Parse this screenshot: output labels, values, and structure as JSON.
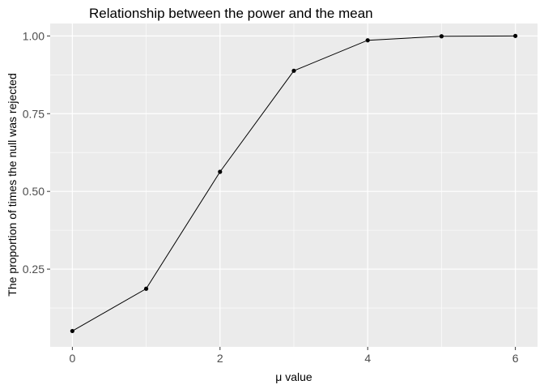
{
  "chart_data": {
    "type": "line",
    "title": "Relationship between the power and the mean",
    "xlabel": "μ value",
    "ylabel": "The proportion of times the null was rejected",
    "xlim": [
      -0.3,
      6.3
    ],
    "ylim": [
      0.0,
      1.04
    ],
    "x_ticks": [
      0,
      2,
      4,
      6
    ],
    "y_ticks": [
      0.25,
      0.5,
      0.75,
      1.0
    ],
    "x_tick_labels": [
      "0",
      "2",
      "4",
      "6"
    ],
    "y_tick_labels": [
      "0.25",
      "0.50",
      "0.75",
      "1.00"
    ],
    "grid": true,
    "series": [
      {
        "x": [
          0,
          1,
          2,
          3,
          4,
          5,
          6
        ],
        "y": [
          0.051,
          0.187,
          0.563,
          0.888,
          0.986,
          0.999,
          1.0
        ]
      }
    ],
    "colors": {
      "panel": "#ebebeb",
      "grid": "#ffffff",
      "line": "#000000",
      "tick_text": "#4d4d4d",
      "tick_mark": "#333333"
    }
  }
}
